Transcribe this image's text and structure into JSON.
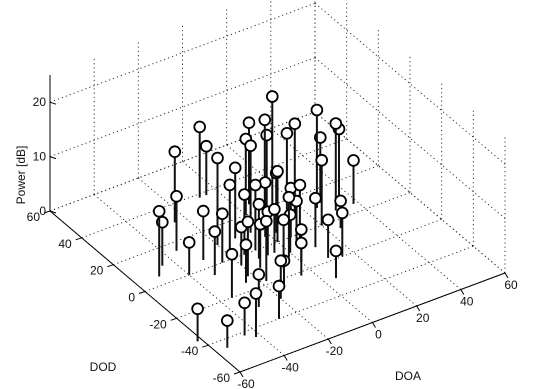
{
  "chart_data": {
    "type": "stem3",
    "title": "",
    "xlabel": "DOA",
    "ylabel": "DOD",
    "zlabel": "Power [dB]",
    "xlim": [
      -60,
      60
    ],
    "ylim": [
      -60,
      60
    ],
    "zlim": [
      0,
      25
    ],
    "xticks": [
      "-60",
      "-40",
      "-20",
      "0",
      "20",
      "40",
      "60"
    ],
    "yticks": [
      "-60",
      "-40",
      "-20",
      "0",
      "20",
      "40",
      "60"
    ],
    "zticks": [
      "0",
      "10",
      "20"
    ],
    "grid": true,
    "marker": "open-circle",
    "points": [
      {
        "doa": -8,
        "dod": 38,
        "power": 13
      },
      {
        "doa": -25,
        "dod": 30,
        "power": 13
      },
      {
        "doa": -5,
        "dod": 38,
        "power": 9
      },
      {
        "doa": -20,
        "dod": 10,
        "power": 16
      },
      {
        "doa": 0,
        "dod": 20,
        "power": 14
      },
      {
        "doa": 5,
        "dod": 25,
        "power": 15
      },
      {
        "doa": 8,
        "dod": 18,
        "power": 14
      },
      {
        "doa": -12,
        "dod": 10,
        "power": 13
      },
      {
        "doa": 5,
        "dod": 15,
        "power": 18
      },
      {
        "doa": 12,
        "dod": 20,
        "power": 20
      },
      {
        "doa": 15,
        "dod": 10,
        "power": 17
      },
      {
        "doa": 15,
        "dod": 15,
        "power": 14
      },
      {
        "doa": 25,
        "dod": 10,
        "power": 18
      },
      {
        "doa": 30,
        "dod": 5,
        "power": 16
      },
      {
        "doa": 28,
        "dod": 12,
        "power": 12
      },
      {
        "doa": 35,
        "dod": 10,
        "power": 13
      },
      {
        "doa": 38,
        "dod": 5,
        "power": 8
      },
      {
        "doa": 25,
        "dod": -5,
        "power": 5
      },
      {
        "doa": 20,
        "dod": 0,
        "power": 12
      },
      {
        "doa": -5,
        "dod": 10,
        "power": 16
      },
      {
        "doa": -2,
        "dod": 5,
        "power": 10
      },
      {
        "doa": 0,
        "dod": 0,
        "power": 13
      },
      {
        "doa": 3,
        "dod": 5,
        "power": 11
      },
      {
        "doa": 6,
        "dod": 0,
        "power": 9
      },
      {
        "doa": -10,
        "dod": 0,
        "power": 12
      },
      {
        "doa": -8,
        "dod": -5,
        "power": 8
      },
      {
        "doa": -15,
        "dod": 0,
        "power": 11
      },
      {
        "doa": -18,
        "dod": 5,
        "power": 12
      },
      {
        "doa": -20,
        "dod": -5,
        "power": 7
      },
      {
        "doa": -25,
        "dod": 0,
        "power": 9
      },
      {
        "doa": -12,
        "dod": -5,
        "power": 10
      },
      {
        "doa": -5,
        "dod": -5,
        "power": 8
      },
      {
        "doa": 0,
        "dod": -8,
        "power": 7
      },
      {
        "doa": 5,
        "dod": -5,
        "power": 8
      },
      {
        "doa": -2,
        "dod": -10,
        "power": 11
      },
      {
        "doa": 10,
        "dod": -10,
        "power": 9
      },
      {
        "doa": 8,
        "dod": -3,
        "power": 10
      },
      {
        "doa": -35,
        "dod": 15,
        "power": 10
      },
      {
        "doa": -30,
        "dod": 5,
        "power": 9
      },
      {
        "doa": -32,
        "dod": -5,
        "power": 8
      },
      {
        "doa": -40,
        "dod": 0,
        "power": 6
      },
      {
        "doa": -25,
        "dod": -15,
        "power": 7
      },
      {
        "doa": -22,
        "dod": -12,
        "power": 10
      },
      {
        "doa": -15,
        "dod": -10,
        "power": 8
      },
      {
        "doa": -8,
        "dod": -15,
        "power": 9
      },
      {
        "doa": 0,
        "dod": -15,
        "power": 6
      },
      {
        "doa": -5,
        "dod": -22,
        "power": 6
      },
      {
        "doa": 10,
        "dod": -18,
        "power": 7
      },
      {
        "doa": 15,
        "dod": -20,
        "power": 8
      },
      {
        "doa": -15,
        "dod": -25,
        "power": 5
      },
      {
        "doa": -35,
        "dod": -20,
        "power": 8
      },
      {
        "doa": -30,
        "dod": -30,
        "power": 6
      },
      {
        "doa": -20,
        "dod": -30,
        "power": 7
      },
      {
        "doa": -42,
        "dod": -45,
        "power": 8
      },
      {
        "doa": -45,
        "dod": -42,
        "power": 6
      },
      {
        "doa": -55,
        "dod": -45,
        "power": 5
      },
      {
        "doa": -62,
        "dod": -36,
        "power": 6
      },
      {
        "doa": -28,
        "dod": -40,
        "power": 6
      },
      {
        "doa": -50,
        "dod": 5,
        "power": 12
      },
      {
        "doa": -45,
        "dod": 10,
        "power": 8
      },
      {
        "doa": -18,
        "dod": -18,
        "power": 11
      },
      {
        "doa": 5,
        "dod": -30,
        "power": 5
      }
    ]
  }
}
